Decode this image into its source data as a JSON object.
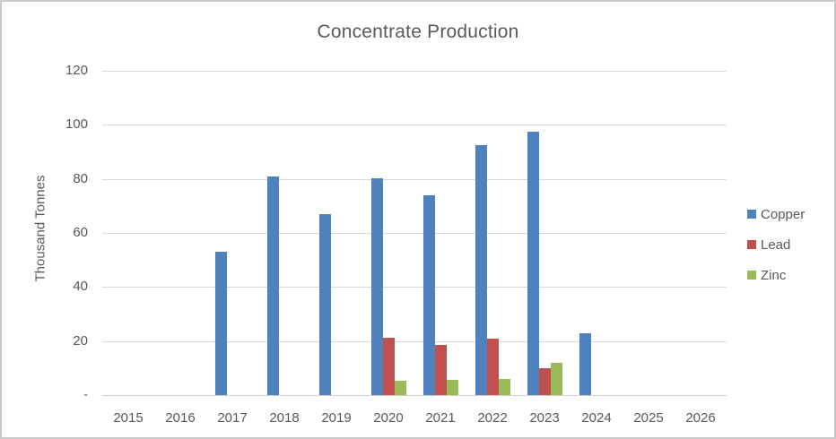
{
  "chart_data": {
    "type": "bar",
    "title": "Concentrate Production",
    "xlabel": "",
    "ylabel": "Thousand Tonnes",
    "categories": [
      "2015",
      "2016",
      "2017",
      "2018",
      "2019",
      "2020",
      "2021",
      "2022",
      "2023",
      "2024",
      "2025",
      "2026"
    ],
    "series": [
      {
        "name": "Copper",
        "color": "#4F81BD",
        "values": [
          0,
          0,
          53,
          81,
          67,
          80.3,
          74,
          92.5,
          97.6,
          23,
          0,
          0
        ]
      },
      {
        "name": "Lead",
        "color": "#C0504D",
        "values": [
          0,
          0,
          0,
          0,
          0,
          21.2,
          18.4,
          20.8,
          10,
          0,
          0,
          0
        ]
      },
      {
        "name": "Zinc",
        "color": "#9BBB59",
        "values": [
          0,
          0,
          0,
          0,
          0,
          5.2,
          5.5,
          6,
          11.8,
          0,
          0,
          0
        ]
      }
    ],
    "ylim": [
      0,
      120
    ],
    "y_ticks": [
      {
        "value": 0,
        "label": "-"
      },
      {
        "value": 20,
        "label": "20"
      },
      {
        "value": 40,
        "label": "40"
      },
      {
        "value": 60,
        "label": "60"
      },
      {
        "value": 80,
        "label": "80"
      },
      {
        "value": 100,
        "label": "100"
      },
      {
        "value": 120,
        "label": "120"
      }
    ],
    "grid": true,
    "legend_position": "right",
    "colors": {
      "text": "#595959",
      "gridline": "#d9d9d9",
      "axis_line": "#cfcfcf",
      "frame_border": "#c9c9c9"
    }
  }
}
